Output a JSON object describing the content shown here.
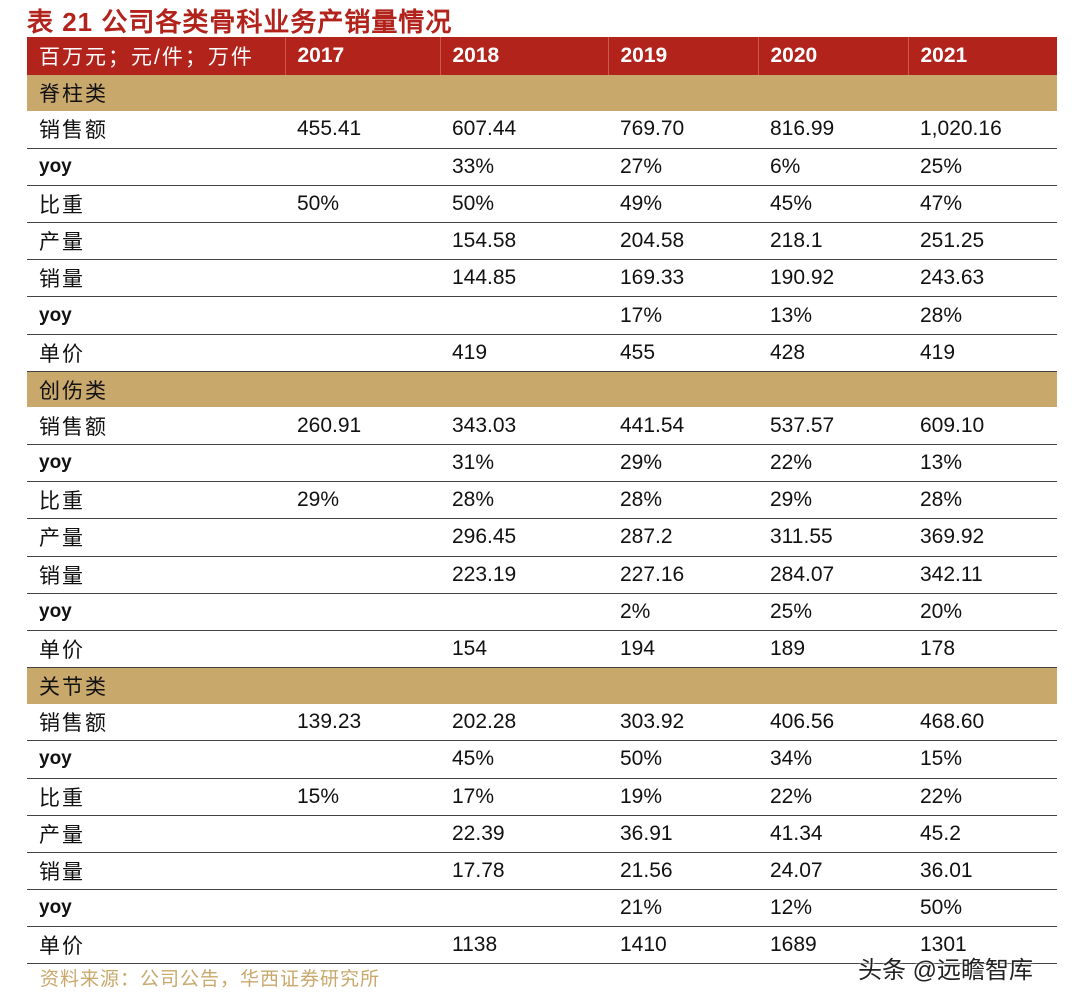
{
  "title": "表 21 公司各类骨科业务产销量情况",
  "header": [
    "百万元；元/件；万件",
    "2017",
    "2018",
    "2019",
    "2020",
    "2021"
  ],
  "sections": [
    {
      "name": "脊柱类",
      "rows": [
        {
          "label": "销售额",
          "values": [
            "455.41",
            "607.44",
            "769.70",
            "816.99",
            "1,020.16"
          ]
        },
        {
          "label": "yoy",
          "values": [
            "",
            "33%",
            "27%",
            "6%",
            "25%"
          ]
        },
        {
          "label": "比重",
          "values": [
            "50%",
            "50%",
            "49%",
            "45%",
            "47%"
          ]
        },
        {
          "label": "产量",
          "values": [
            "",
            "154.58",
            "204.58",
            "218.1",
            "251.25"
          ]
        },
        {
          "label": "销量",
          "values": [
            "",
            "144.85",
            "169.33",
            "190.92",
            "243.63"
          ]
        },
        {
          "label": "yoy",
          "values": [
            "",
            "",
            "17%",
            "13%",
            "28%"
          ]
        },
        {
          "label": "单价",
          "values": [
            "",
            "419",
            "455",
            "428",
            "419"
          ]
        }
      ]
    },
    {
      "name": "创伤类",
      "rows": [
        {
          "label": "销售额",
          "values": [
            "260.91",
            "343.03",
            "441.54",
            "537.57",
            "609.10"
          ]
        },
        {
          "label": "yoy",
          "values": [
            "",
            "31%",
            "29%",
            "22%",
            "13%"
          ]
        },
        {
          "label": "比重",
          "values": [
            "29%",
            "28%",
            "28%",
            "29%",
            "28%"
          ]
        },
        {
          "label": "产量",
          "values": [
            "",
            "296.45",
            "287.2",
            "311.55",
            "369.92"
          ]
        },
        {
          "label": "销量",
          "values": [
            "",
            "223.19",
            "227.16",
            "284.07",
            "342.11"
          ]
        },
        {
          "label": "yoy",
          "values": [
            "",
            "",
            "2%",
            "25%",
            "20%"
          ]
        },
        {
          "label": "单价",
          "values": [
            "",
            "154",
            "194",
            "189",
            "178"
          ]
        }
      ]
    },
    {
      "name": "关节类",
      "rows": [
        {
          "label": "销售额",
          "values": [
            "139.23",
            "202.28",
            "303.92",
            "406.56",
            "468.60"
          ]
        },
        {
          "label": "yoy",
          "values": [
            "",
            "45%",
            "50%",
            "34%",
            "15%"
          ]
        },
        {
          "label": "比重",
          "values": [
            "15%",
            "17%",
            "19%",
            "22%",
            "22%"
          ]
        },
        {
          "label": "产量",
          "values": [
            "",
            "22.39",
            "36.91",
            "41.34",
            "45.2"
          ]
        },
        {
          "label": "销量",
          "values": [
            "",
            "17.78",
            "21.56",
            "24.07",
            "36.01"
          ]
        },
        {
          "label": "yoy",
          "values": [
            "",
            "",
            "21%",
            "12%",
            "50%"
          ]
        },
        {
          "label": "单价",
          "values": [
            "",
            "1138",
            "1410",
            "1689",
            "1301"
          ]
        }
      ]
    }
  ],
  "source": "资料来源：公司公告，华西证券研究所",
  "watermark": "头条 @远瞻智库",
  "colors": {
    "header_bg": "#b2231c",
    "section_bg": "#c9a86c",
    "source_text": "#c9a86c"
  }
}
